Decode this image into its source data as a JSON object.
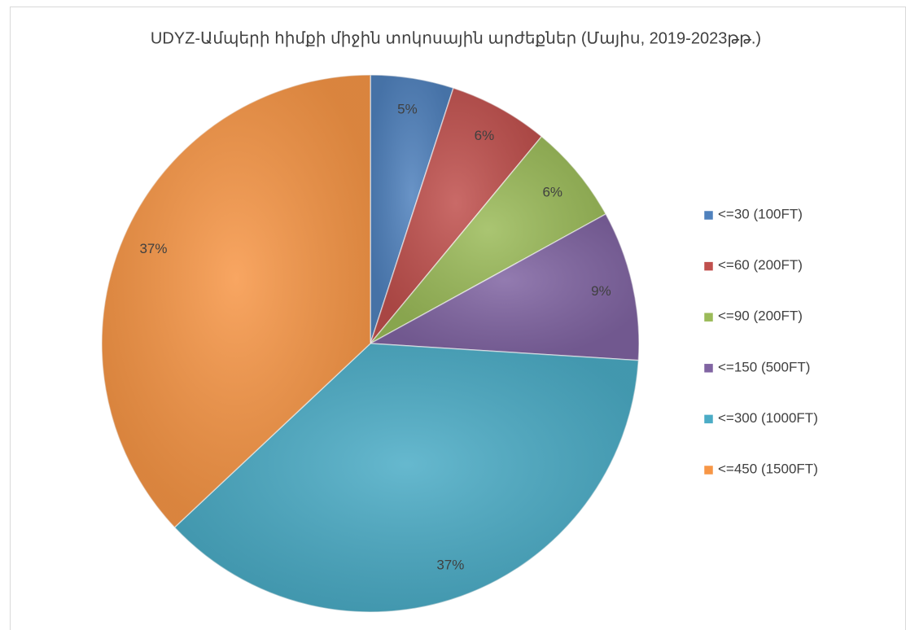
{
  "chart_data": {
    "type": "pie",
    "title": "UDYZ-Ամպերի հիմքի միջին տոկոսային արժեքներ (Մայիս, 2019-2023թթ.)",
    "categories": [
      "<=30 (100FT)",
      "<=60 (200FT)",
      "<=90 (200FT)",
      "<=150 (500FT)",
      "<=300 (1000FT)",
      "<=450 (1500FT)"
    ],
    "values": [
      5,
      6,
      6,
      9,
      37,
      37
    ],
    "value_labels": [
      "5%",
      "6%",
      "6%",
      "9%",
      "37%",
      "37%"
    ],
    "colors": [
      "#4f81bd",
      "#c0504d",
      "#9bbb59",
      "#8064a2",
      "#4bacc6",
      "#f79646"
    ],
    "legend": "right"
  }
}
